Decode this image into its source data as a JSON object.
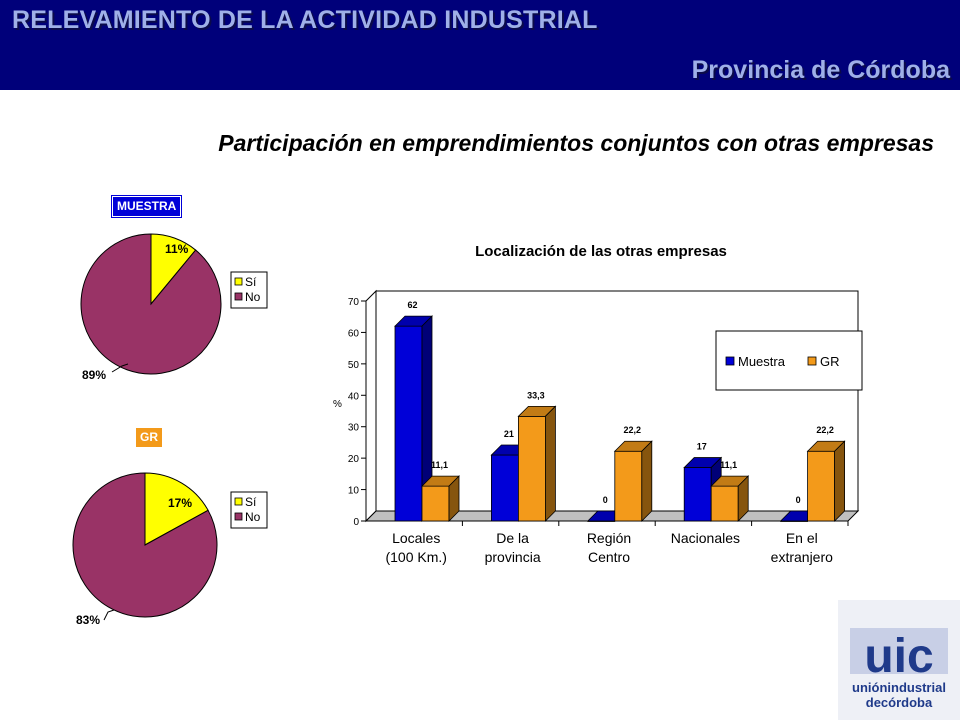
{
  "header": {
    "title": "RELEVAMIENTO DE LA ACTIVIDAD INDUSTRIAL",
    "subtitle": "Provincia de Córdoba"
  },
  "main_title": "Participación en emprendimientos conjuntos con otras empresas",
  "logo": {
    "mark": "uic",
    "line1": "uniónindustrial",
    "line2": "decórdoba"
  },
  "colors": {
    "header_bg": "#00007a",
    "header_text": "#9fb0e8",
    "muestra": "#0000d8",
    "gr": "#f39a1a",
    "si": "#ffff00",
    "no": "#993366"
  },
  "chart_data": [
    {
      "type": "pie",
      "badge": "MUESTRA",
      "labels": [
        "Sí",
        "No"
      ],
      "values": [
        11,
        89
      ],
      "value_labels": [
        "11%",
        "89%"
      ],
      "legend": [
        "Sí",
        "No"
      ],
      "legend_position": "right"
    },
    {
      "type": "pie",
      "badge": "GR",
      "labels": [
        "Sí",
        "No"
      ],
      "values": [
        17,
        83
      ],
      "value_labels": [
        "17%",
        "83%"
      ],
      "legend": [
        "Sí",
        "No"
      ],
      "legend_position": "right"
    },
    {
      "type": "bar",
      "title": "Localización de las otras empresas",
      "ylabel": "%",
      "ylim": [
        0,
        70
      ],
      "yticks": [
        "0",
        "10",
        "20",
        "30",
        "40",
        "50",
        "60",
        "70"
      ],
      "categories": [
        [
          "Locales",
          "(100 Km.)"
        ],
        [
          "De la",
          "provincia"
        ],
        [
          "Región",
          "Centro"
        ],
        [
          "Nacionales"
        ],
        [
          "En el",
          "extranjero"
        ]
      ],
      "series": [
        {
          "name": "Muestra",
          "values": [
            62,
            21,
            0,
            17,
            0
          ],
          "labels": [
            "62",
            "21",
            "0",
            "17",
            "0"
          ]
        },
        {
          "name": "GR",
          "values": [
            11.1,
            33.3,
            22.2,
            11.1,
            22.2
          ],
          "labels": [
            "11,1",
            "33,3",
            "22,2",
            "11,1",
            "22,2"
          ]
        }
      ],
      "legend_position": "top-right",
      "grid": false
    }
  ]
}
